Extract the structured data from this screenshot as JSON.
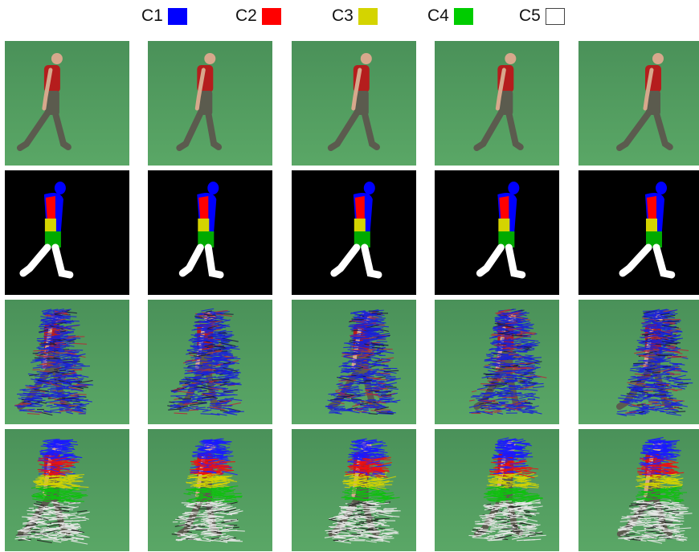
{
  "legend": [
    {
      "label": "C1",
      "color": "#0000ff",
      "name": "legend-c1"
    },
    {
      "label": "C2",
      "color": "#ff0000",
      "name": "legend-c2"
    },
    {
      "label": "C3",
      "color": "#d4d400",
      "name": "legend-c3"
    },
    {
      "label": "C4",
      "color": "#00cc00",
      "name": "legend-c4"
    },
    {
      "label": "C5",
      "color": "#ffffff",
      "name": "legend-c5"
    }
  ],
  "colors": {
    "background_green": "#4f9a5e",
    "mask_background": "#000000",
    "shirt": "#b51d1d",
    "pants": "#5b5b4e",
    "skin": "#d7a88c"
  },
  "rows": [
    "photo",
    "segmentation-mask",
    "motion-vectors",
    "clustered-vectors"
  ],
  "columns": 5
}
